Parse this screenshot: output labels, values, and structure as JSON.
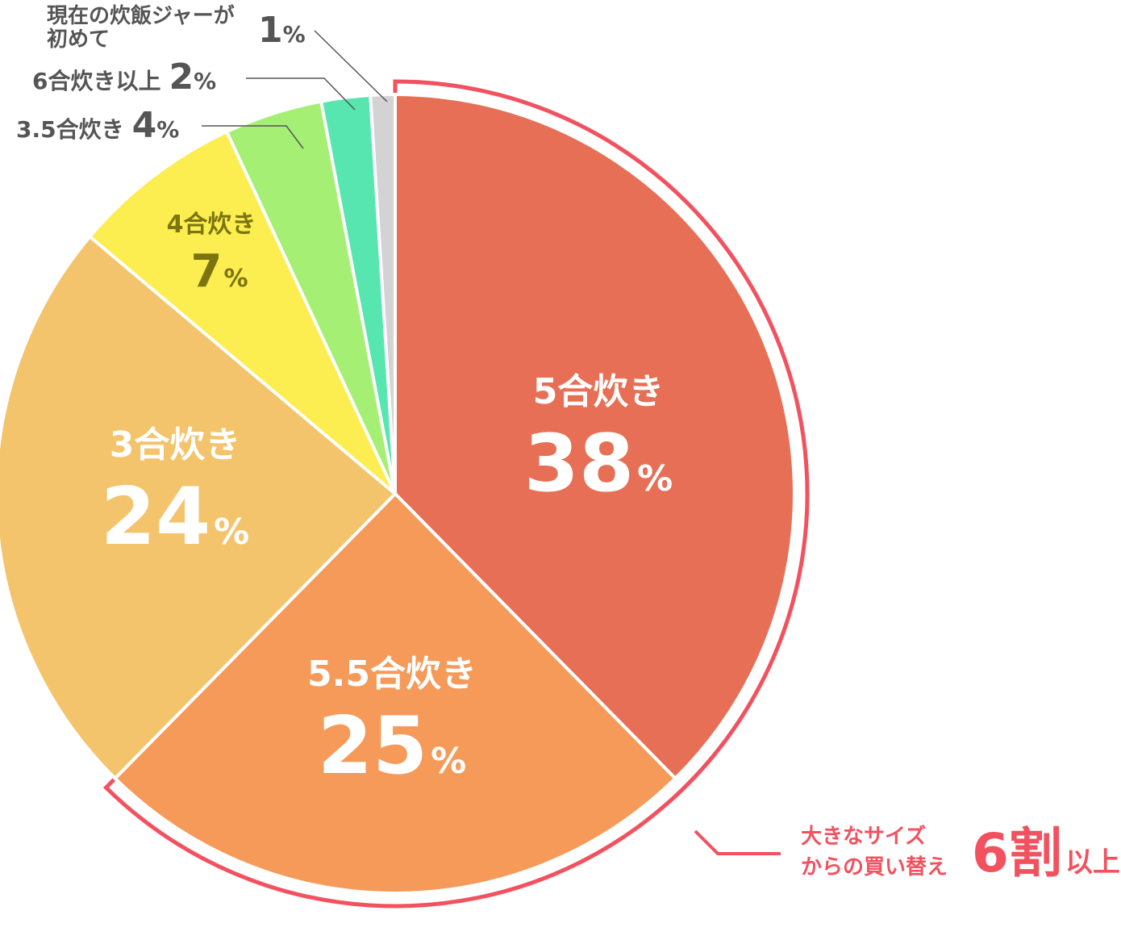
{
  "chart_data": {
    "type": "pie",
    "slices": [
      {
        "label": "5合炊き",
        "value": 38,
        "unit": "%",
        "color": "#e76f55"
      },
      {
        "label": "5.5合炊き",
        "value": 25,
        "unit": "%",
        "color": "#f59a59"
      },
      {
        "label": "3合炊き",
        "value": 24,
        "unit": "%",
        "color": "#f3c46c"
      },
      {
        "label": "4合炊き",
        "value": 7,
        "unit": "%",
        "color": "#fced50"
      },
      {
        "label": "3.5合炊き",
        "value": 4,
        "unit": "%",
        "color": "#a5ef74"
      },
      {
        "label": "6合炊き以上",
        "value": 2,
        "unit": "%",
        "color": "#57e6b0"
      },
      {
        "label_lines": [
          "現在の炊飯ジャーが",
          "初めて"
        ],
        "value": 1,
        "unit": "%",
        "color": "#d3d3d3"
      }
    ],
    "highlight": {
      "slices": [
        "5合炊き",
        "5.5合炊き"
      ],
      "outline_color": "#f2525f",
      "caption_lines": [
        "大きなサイズ",
        "からの買い替え"
      ],
      "big_text": "6割",
      "suffix_text": "以上"
    }
  }
}
